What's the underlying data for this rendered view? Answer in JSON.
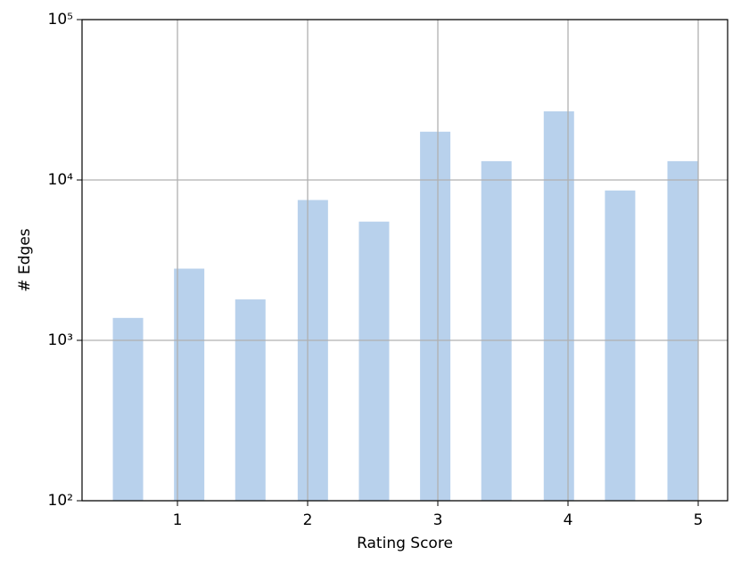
{
  "chart_data": {
    "type": "bar",
    "x_label": "Rating Score",
    "y_label": "# Edges",
    "x": [
      0.62,
      1.09,
      1.56,
      2.04,
      2.51,
      2.98,
      3.45,
      3.93,
      4.4,
      4.88
    ],
    "values": [
      1380,
      2800,
      1800,
      7500,
      5500,
      20000,
      13100,
      26800,
      8600,
      13100
    ],
    "color": "#b8d1ec",
    "xlim": [
      0.267,
      5.226
    ],
    "xticks": [
      1,
      2,
      3,
      4,
      5
    ],
    "ylim": [
      100,
      100000
    ],
    "y_scale": "log",
    "yticks": [
      {
        "value": 100,
        "label": "10²"
      },
      {
        "value": 1000,
        "label": "10³"
      },
      {
        "value": 10000,
        "label": "10⁴"
      },
      {
        "value": 100000,
        "label": "10⁵"
      }
    ],
    "grid": true
  }
}
